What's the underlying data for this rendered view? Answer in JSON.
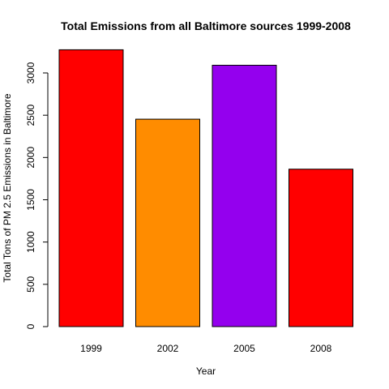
{
  "chart_data": {
    "type": "bar",
    "title": "Total Emissions from all Baltimore sources 1999-2008",
    "xlabel": "Year",
    "ylabel": "Total Tons of PM 2.5 Emissions in Baltimore",
    "categories": [
      "1999",
      "2002",
      "2005",
      "2008"
    ],
    "values": [
      3274,
      2453,
      3091,
      1862
    ],
    "colors": [
      "#ff0000",
      "#ff8c00",
      "#9400ee",
      "#ff0000"
    ],
    "ylim": [
      0,
      3300
    ],
    "yticks": [
      0,
      500,
      1000,
      1500,
      2000,
      2500,
      3000
    ],
    "ytick_labels": [
      "0",
      "500",
      "1000",
      "1500",
      "2000",
      "2500",
      "3000"
    ],
    "grid": false,
    "legend": "none"
  }
}
